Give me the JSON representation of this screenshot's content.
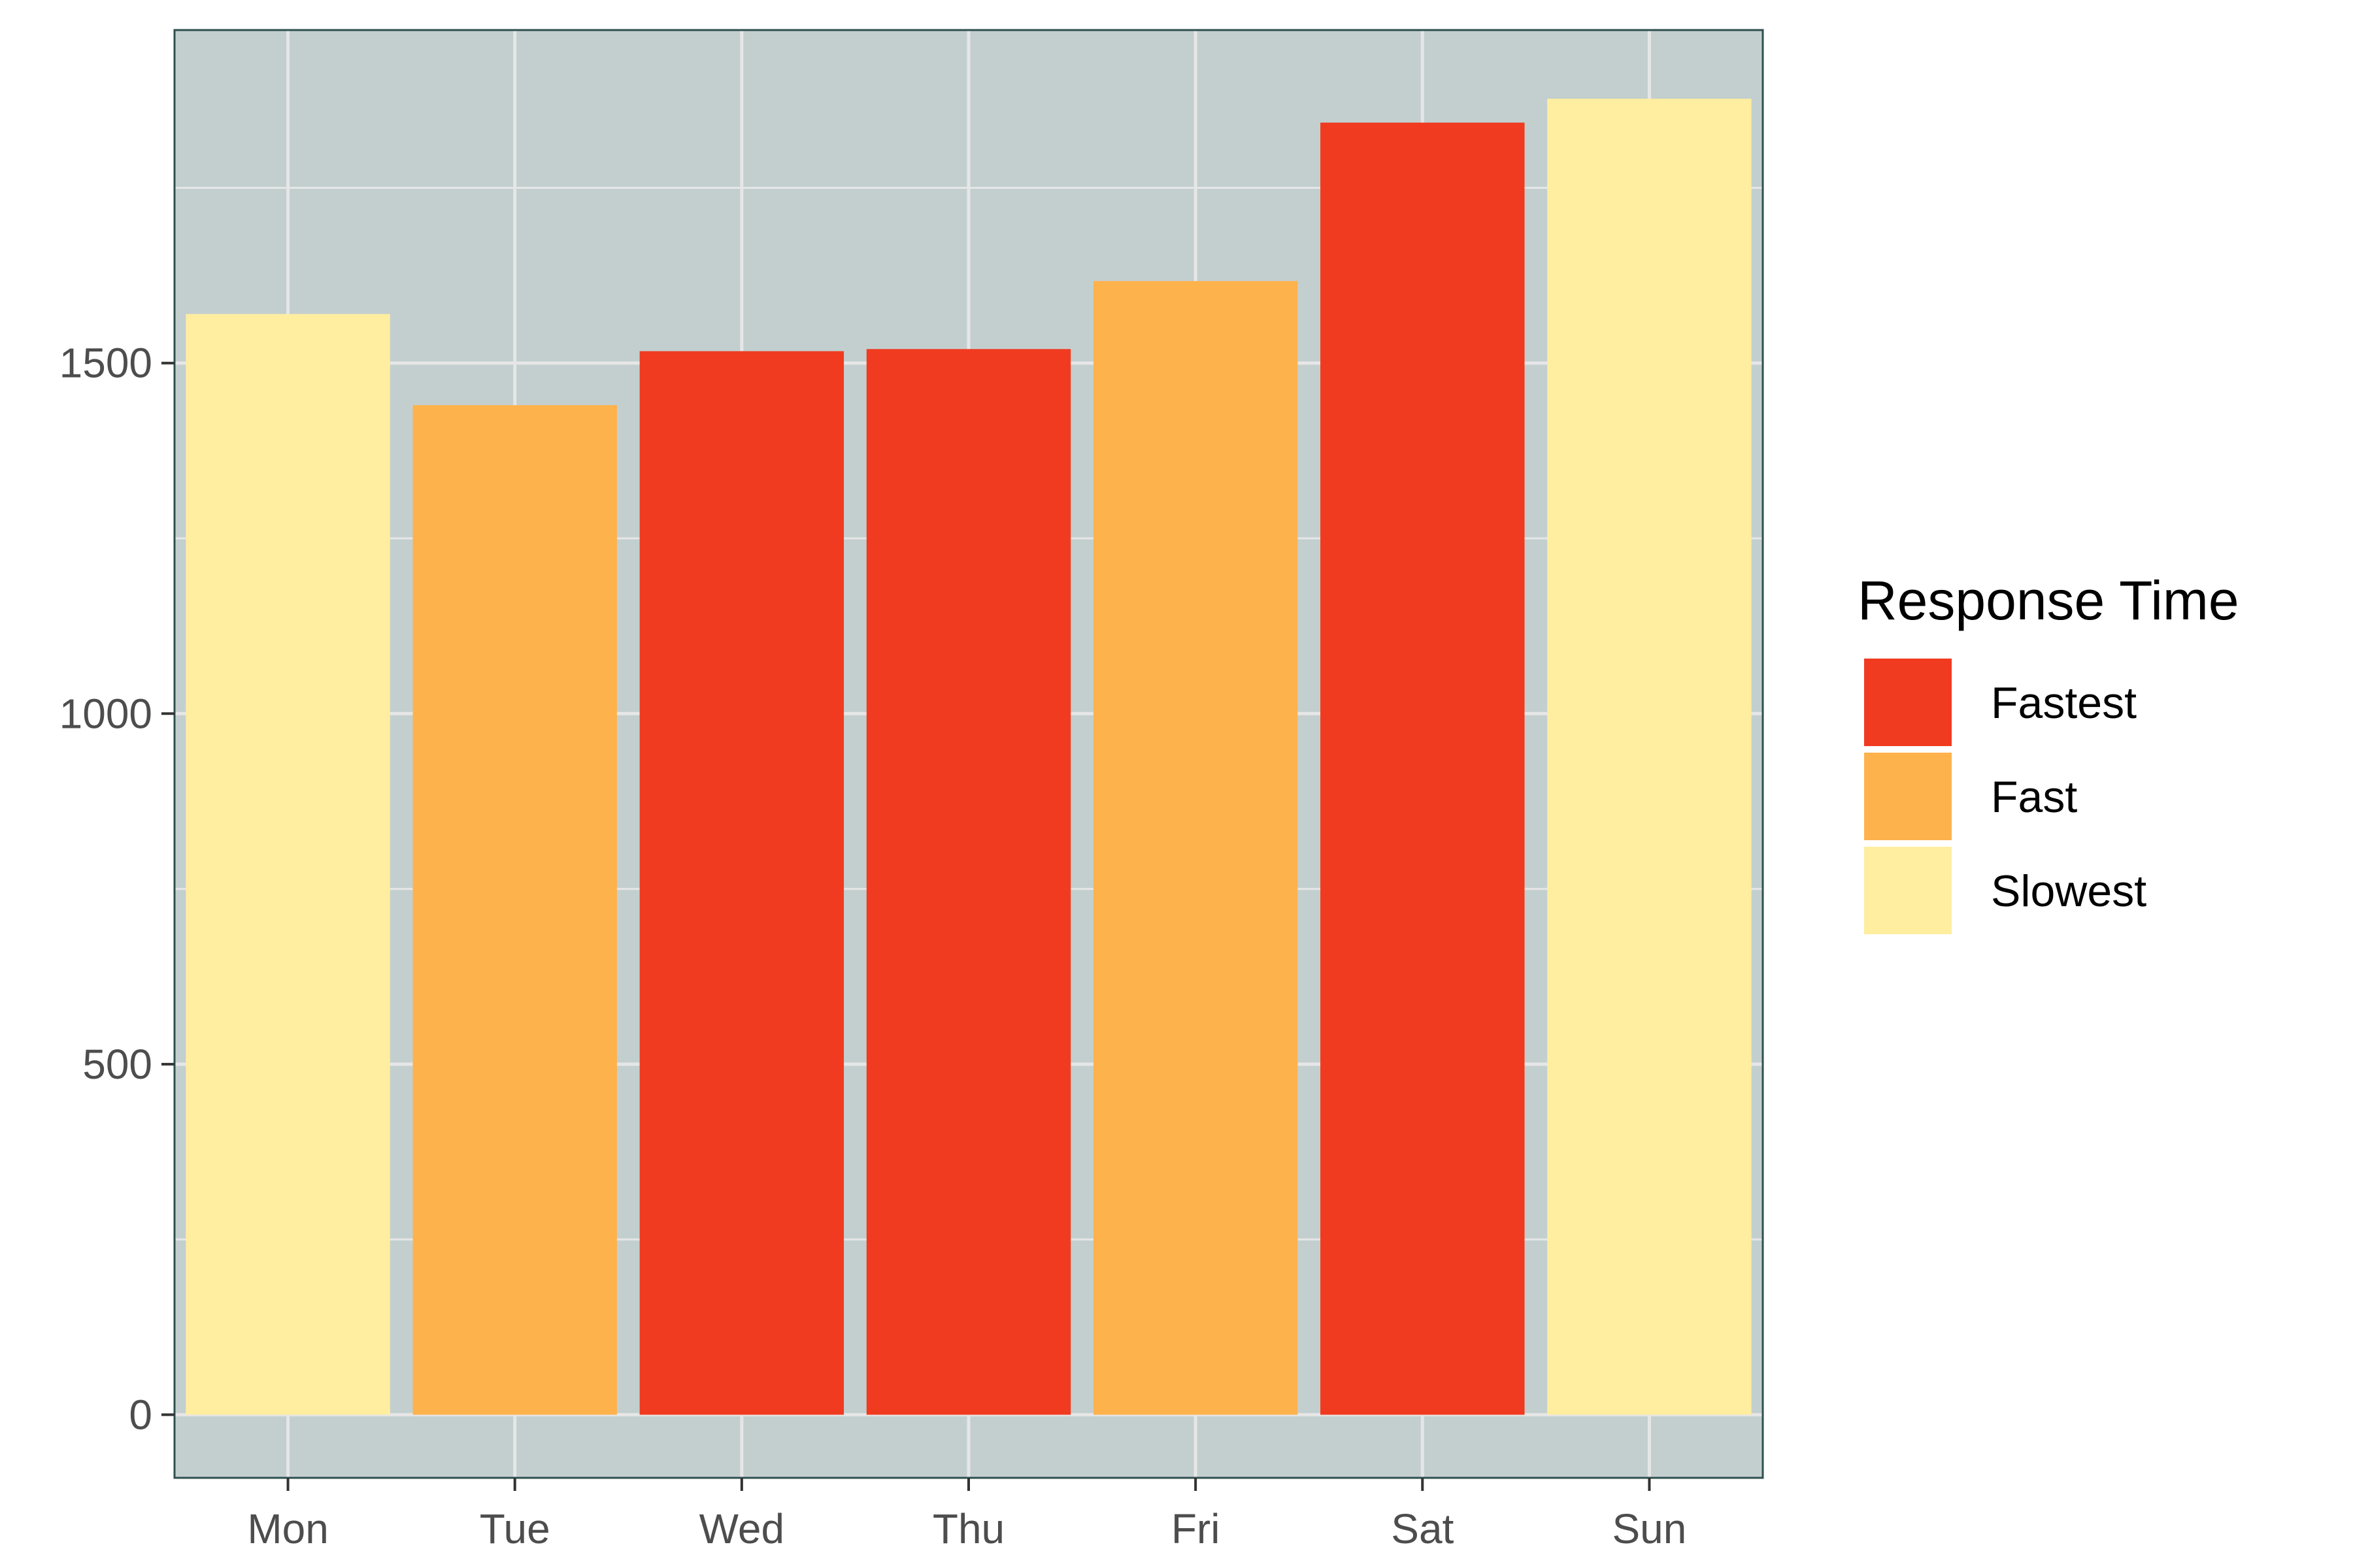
{
  "chart_data": {
    "type": "bar",
    "categories": [
      "Mon",
      "Tue",
      "Wed",
      "Thu",
      "Fri",
      "Sat",
      "Sun"
    ],
    "values": [
      1570,
      1440,
      1517,
      1520,
      1617,
      1843,
      1877
    ],
    "groups": [
      "Slowest",
      "Fast",
      "Fastest",
      "Fastest",
      "Fast",
      "Fastest",
      "Slowest"
    ],
    "xlabel": "",
    "ylabel": "",
    "ylim": [
      -90,
      1975
    ],
    "yticks": [
      0,
      500,
      1000,
      1500
    ],
    "grid": true,
    "legend": {
      "title": "Response Time",
      "placement": "right",
      "entries": [
        {
          "label": "Fastest",
          "color": "#f03b20"
        },
        {
          "label": "Fast",
          "color": "#feb24c"
        },
        {
          "label": "Slowest",
          "color": "#ffeda0"
        }
      ]
    }
  },
  "colors": {
    "panel_background": "#c3cfcf",
    "grid": "#e6e6e6",
    "panel_border": "#2f4f4f",
    "tick_text": "#4d4d4d"
  }
}
